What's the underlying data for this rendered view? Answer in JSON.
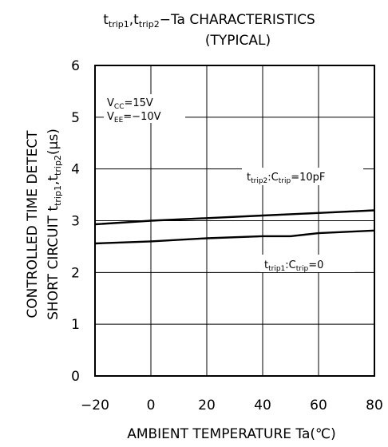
{
  "chart_data": {
    "type": "line",
    "title": {
      "line1": {
        "t1": "t",
        "s1": "trip1",
        "sep": ",",
        "t2": "t",
        "s2": "trip2",
        "rest": "−Ta  CHARACTERISTICS"
      },
      "line2": "(TYPICAL)"
    },
    "xlabel": "AMBIENT  TEMPERATURE  Ta(℃)",
    "ylabel": {
      "line1": "CONTROLLED  TIME  DETECT",
      "line2_prefix": "SHORT  CIRCUIT   ",
      "line2_t1": "t",
      "line2_s1": "trip1",
      "line2_sep": ",",
      "line2_t2": "t",
      "line2_s2": "trip2",
      "line2_unit": "(μs)"
    },
    "xlim": [
      -20,
      80
    ],
    "ylim": [
      0,
      6
    ],
    "xticks": [
      "−20",
      "0",
      "20",
      "40",
      "60",
      "80"
    ],
    "xtick_values": [
      -20,
      0,
      20,
      40,
      60,
      80
    ],
    "yticks": [
      "0",
      "1",
      "2",
      "3",
      "4",
      "5",
      "6"
    ],
    "ytick_values": [
      0,
      1,
      2,
      3,
      4,
      5,
      6
    ],
    "grid": true,
    "conditions": {
      "vcc": {
        "main": "V",
        "sub": "CC",
        "value": "=15V"
      },
      "vee": {
        "main": "V",
        "sub": "EE",
        "value": "=−10V"
      }
    },
    "series": [
      {
        "name": "ttrip2",
        "label": {
          "t": "t",
          "s1": "trip2",
          "mid": ":C",
          "s2": "trip",
          "val": "=10pF"
        },
        "x": [
          -20,
          0,
          20,
          40,
          60,
          80
        ],
        "y": [
          2.93,
          3.0,
          3.05,
          3.1,
          3.15,
          3.2
        ]
      },
      {
        "name": "ttrip1",
        "label": {
          "t": "t",
          "s1": "trip1",
          "mid": ":C",
          "s2": "trip",
          "val": "=0"
        },
        "x": [
          -20,
          0,
          20,
          40,
          50,
          55,
          60,
          80
        ],
        "y": [
          2.56,
          2.6,
          2.66,
          2.7,
          2.7,
          2.73,
          2.76,
          2.81
        ]
      }
    ]
  }
}
